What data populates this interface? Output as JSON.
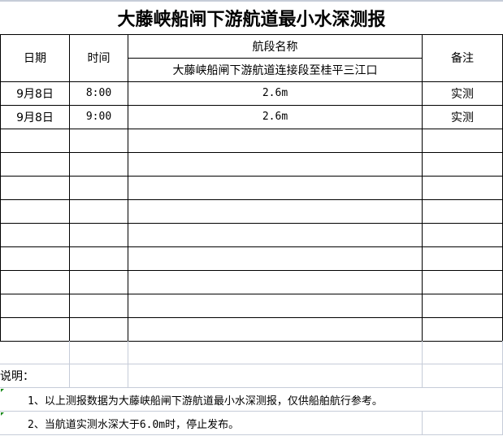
{
  "title": "大藤峡船闸下游航道最小水深测报",
  "headers": {
    "date": "日期",
    "time": "时间",
    "section": "航段名称",
    "section_name": "大藤峡船闸下游航道连接段至桂平三江口",
    "remark": "备注"
  },
  "rows": [
    {
      "date": "9月8日",
      "time": "8:00",
      "depth": "2.6m",
      "remark": "实测"
    },
    {
      "date": "9月8日",
      "time": "9:00",
      "depth": "2.6m",
      "remark": "实测"
    }
  ],
  "notes": {
    "label": "说明：",
    "items": [
      "1、以上测报数据为大藤峡船闸下游航道最小水深测报，仅供船舶航行参考。",
      "2、当航道实测水深大于6.0m时，停止发布。"
    ]
  }
}
